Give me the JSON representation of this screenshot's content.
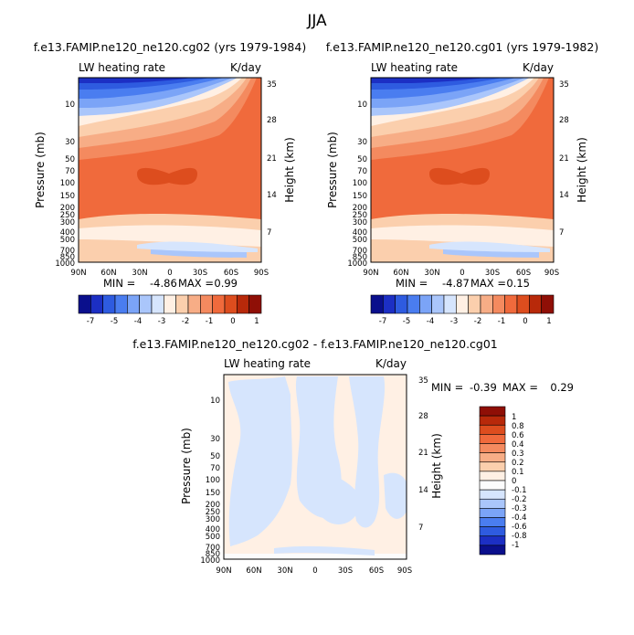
{
  "page_title": "JJA",
  "chart_data": [
    {
      "type": "contour",
      "title": "f.e13.FAMIP.ne120_ne120.cg02 (yrs 1979-1984)",
      "left_label": "LW heating rate",
      "right_label": "K/day",
      "ylabel": "Pressure (mb)",
      "ylabel_right": "Height (km)",
      "x_ticks": [
        "90N",
        "60N",
        "30N",
        "0",
        "30S",
        "60S",
        "90S"
      ],
      "y_ticks": [
        "10",
        "30",
        "50",
        "70",
        "100",
        "150",
        "200",
        "250",
        "300",
        "400",
        "500",
        "700",
        "850",
        "1000"
      ],
      "height_ticks": [
        "35",
        "28",
        "21",
        "14",
        "7"
      ],
      "stats": {
        "min_label": "MIN =",
        "min": "-4.86",
        "max_label": "MAX =",
        "max": "0.99"
      },
      "colorbar": {
        "labels": [
          "-7",
          "-5",
          "-4",
          "-3",
          "-2",
          "-1",
          "0",
          "1"
        ],
        "colors": [
          "#0a0f8c",
          "#1c2fc4",
          "#2e5be0",
          "#4a7df0",
          "#7ba4f7",
          "#aac6fb",
          "#d6e5fd",
          "#fff0e4",
          "#fbcfad",
          "#f7ad86",
          "#f48a5f",
          "#f06a3c",
          "#dd4d1e",
          "#b8290a",
          "#8f0f06"
        ]
      }
    },
    {
      "type": "contour",
      "title": "f.e13.FAMIP.ne120_ne120.cg01 (yrs 1979-1982)",
      "left_label": "LW heating rate",
      "right_label": "K/day",
      "ylabel": "Pressure (mb)",
      "ylabel_right": "Height (km)",
      "x_ticks": [
        "90N",
        "60N",
        "30N",
        "0",
        "30S",
        "60S",
        "90S"
      ],
      "y_ticks": [
        "10",
        "30",
        "50",
        "70",
        "100",
        "150",
        "200",
        "250",
        "300",
        "400",
        "500",
        "700",
        "850",
        "1000"
      ],
      "height_ticks": [
        "35",
        "28",
        "21",
        "14",
        "7"
      ],
      "stats": {
        "min_label": "MIN =",
        "min": "-4.87",
        "max_label": "MAX =",
        "max": "0.15"
      },
      "colorbar": {
        "labels": [
          "-7",
          "-5",
          "-4",
          "-3",
          "-2",
          "-1",
          "0",
          "1"
        ],
        "colors": [
          "#0a0f8c",
          "#1c2fc4",
          "#2e5be0",
          "#4a7df0",
          "#7ba4f7",
          "#aac6fb",
          "#d6e5fd",
          "#fff0e4",
          "#fbcfad",
          "#f7ad86",
          "#f48a5f",
          "#f06a3c",
          "#dd4d1e",
          "#b8290a",
          "#8f0f06"
        ]
      }
    },
    {
      "type": "contour",
      "title": "f.e13.FAMIP.ne120_ne120.cg02 - f.e13.FAMIP.ne120_ne120.cg01",
      "left_label": "LW heating rate",
      "right_label": "K/day",
      "ylabel": "Pressure (mb)",
      "ylabel_right": "Height (km)",
      "x_ticks": [
        "90N",
        "60N",
        "30N",
        "0",
        "30S",
        "60S",
        "90S"
      ],
      "y_ticks": [
        "10",
        "30",
        "50",
        "70",
        "100",
        "150",
        "200",
        "250",
        "300",
        "400",
        "500",
        "700",
        "850",
        "1000"
      ],
      "height_ticks": [
        "35",
        "28",
        "21",
        "14",
        "7"
      ],
      "stats": {
        "min_label": "MIN =",
        "min": "-0.39",
        "max_label": "MAX =",
        "max": "0.29"
      },
      "colorbar": {
        "labels": [
          "1",
          "0.8",
          "0.6",
          "0.4",
          "0.3",
          "0.2",
          "0.1",
          "0",
          "-0.1",
          "-0.2",
          "-0.3",
          "-0.4",
          "-0.6",
          "-0.8",
          "-1"
        ],
        "colors": [
          "#8f0f06",
          "#b8290a",
          "#dd4d1e",
          "#f06a3c",
          "#f48a5f",
          "#f7ad86",
          "#fbcfad",
          "#fff0e4",
          "#fcfcfc",
          "#d6e5fd",
          "#aac6fb",
          "#7ba4f7",
          "#4a7df0",
          "#2e5be0",
          "#1c2fc4",
          "#0a0f8c"
        ]
      }
    }
  ]
}
